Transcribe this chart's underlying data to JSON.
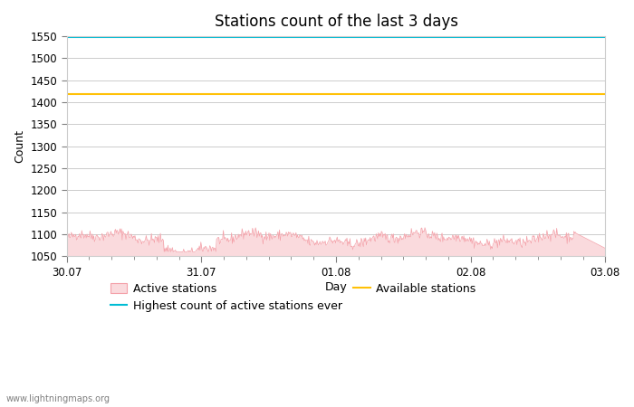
{
  "title": "Stations count of the last 3 days",
  "xlabel": "Day",
  "ylabel": "Count",
  "ylim": [
    1050,
    1550
  ],
  "yticks": [
    1050,
    1100,
    1150,
    1200,
    1250,
    1300,
    1350,
    1400,
    1450,
    1500,
    1550
  ],
  "x_start": 0,
  "x_end": 72,
  "xtick_labels": [
    "30.07",
    "31.07",
    "01.08",
    "02.08",
    "03.08"
  ],
  "xtick_positions": [
    0,
    18,
    36,
    54,
    72
  ],
  "highest_ever": 1548,
  "available_stations": 1418,
  "active_floor": 1050,
  "area_fill_color": "#fadadd",
  "area_line_color": "#f4a0a8",
  "highest_ever_color": "#00bcd4",
  "available_color": "#ffc107",
  "watermark": "www.lightningmaps.org",
  "title_fontsize": 12,
  "label_fontsize": 9,
  "tick_fontsize": 8.5
}
